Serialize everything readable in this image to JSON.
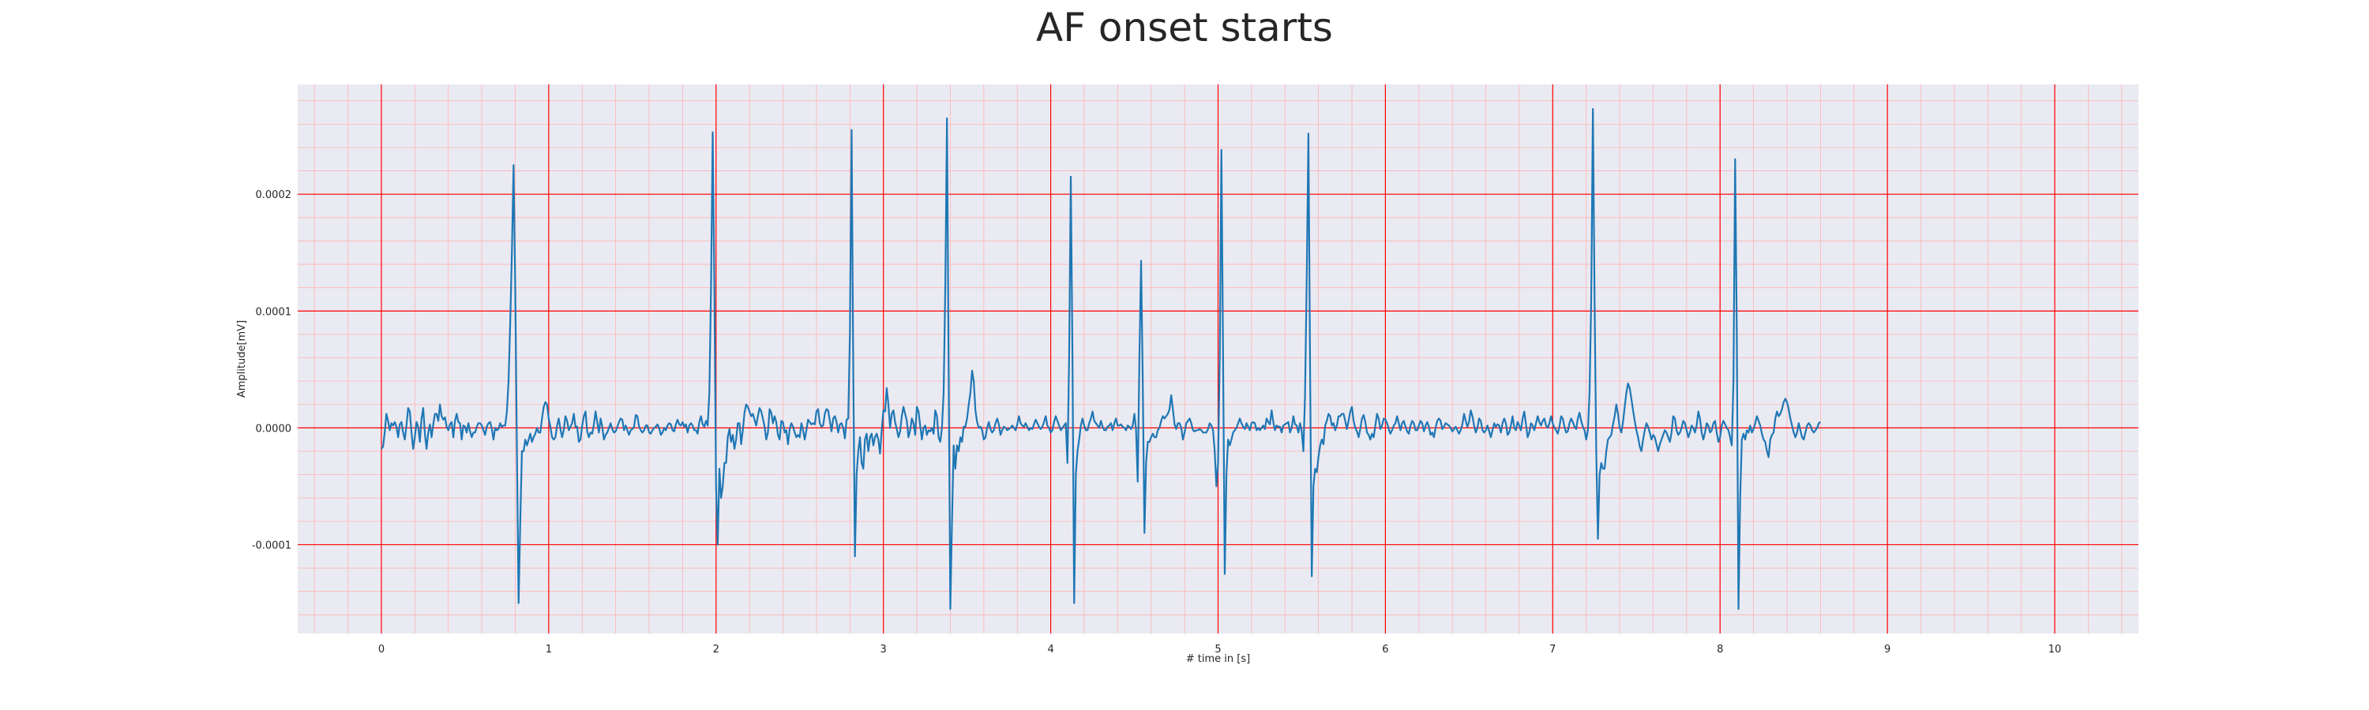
{
  "chart_data": {
    "type": "line",
    "title": "AF onset starts",
    "xlabel": "# time in [s]",
    "ylabel": "Amplitude[mV]",
    "xlim": [
      -0.5,
      10.5
    ],
    "ylim": [
      -0.000176,
      0.000294
    ],
    "xticks": [
      0,
      1,
      2,
      3,
      4,
      5,
      6,
      7,
      8,
      9,
      10
    ],
    "xtick_labels": [
      "0",
      "1",
      "2",
      "3",
      "4",
      "5",
      "6",
      "7",
      "8",
      "9",
      "10"
    ],
    "yticks": [
      -0.0001,
      0.0,
      0.0001,
      0.0002
    ],
    "ytick_labels": [
      "-0.0001",
      "0.0000",
      "0.0001",
      "0.0002"
    ],
    "grid": true,
    "grid_color": "#ff0000",
    "minor_grid_color": "#ffb3b3",
    "background_color": "#eaeaf2",
    "line_color": "#1f77b4",
    "series": [
      {
        "sampling_rate": 100,
        "start_time": 0.0,
        "values": [
          -1.8e-05,
          -1.6e-05,
          -4e-06,
          1.2e-05,
          6e-06,
          -2e-06,
          4e-06,
          2e-06,
          5e-06,
          1e-06,
          -8e-06,
          3e-06,
          5e-06,
          -4e-06,
          -1e-05,
          2e-06,
          1.7e-05,
          1.4e-05,
          -4e-06,
          -1.8e-05,
          -8e-06,
          5e-06,
          1e-06,
          -1.2e-05,
          8e-06,
          1.7e-05,
          -5e-06,
          -1.8e-05,
          -4e-06,
          3e-06,
          -8e-06,
          3e-06,
          1.2e-05,
          1.2e-05,
          6e-06,
          2e-05,
          1e-05,
          7e-06,
          9e-06,
          1e-06,
          -2e-06,
          3e-06,
          5e-06,
          -8e-06,
          6e-06,
          1.2e-05,
          5e-06,
          4e-06,
          -1e-05,
          2e-06,
          1e-06,
          -4e-06,
          4e-06,
          -3e-06,
          -8e-06,
          -4e-06,
          -4e-06,
          1e-06,
          4e-06,
          4e-06,
          2e-06,
          -2e-06,
          -6e-06,
          1e-06,
          4e-06,
          5e-06,
          -1e-06,
          -1e-05,
          0.0,
          -2e-06,
          -1e-06,
          4e-06,
          1e-06,
          2e-06,
          2e-06,
          1.4e-05,
          4e-05,
          9e-05,
          0.00015,
          0.000225,
          0.00012,
          -2e-05,
          -0.00015,
          -8e-05,
          -2e-05,
          -2e-05,
          -1e-05,
          -1.5e-05,
          -1e-05,
          -5e-06,
          -1.2e-05,
          -8e-06,
          -5e-06,
          0.0,
          -4e-06,
          -4e-06,
          8e-06,
          1.8e-05,
          2.2e-05,
          2e-05,
          8e-06,
          1e-06,
          -8e-06,
          -1e-05,
          -8e-06,
          2e-06,
          8e-06,
          -1e-06,
          -8e-06,
          -2e-06,
          1e-05,
          6e-06,
          -2e-06,
          1e-06,
          4e-06,
          1.2e-05,
          1e-06,
          1e-06,
          -1.2e-05,
          -1e-05,
          2e-06,
          1e-05,
          1.4e-05,
          -3e-06,
          -8e-06,
          -4e-06,
          -5e-06,
          3e-06,
          1.4e-05,
          5e-06,
          -4e-06,
          8e-06,
          1e-06,
          -1e-05,
          -6e-06,
          -4e-06,
          0.0,
          4e-06,
          -1e-06,
          -4e-06,
          -3e-06,
          1e-06,
          5e-06,
          8e-06,
          7e-06,
          -2e-06,
          2e-06,
          -2e-06,
          -6e-06,
          -2e-06,
          -1e-06,
          1e-06,
          1.1e-05,
          1e-05,
          1e-06,
          -2e-06,
          -4e-06,
          -2e-06,
          2e-06,
          2e-06,
          -4e-06,
          -5e-06,
          -2e-06,
          0.0,
          1e-06,
          3e-06,
          0.0,
          -6e-06,
          -4e-06,
          0.0,
          -2e-06,
          2e-06,
          4e-06,
          3e-06,
          -2e-06,
          -3e-06,
          3e-06,
          7e-06,
          3e-06,
          2e-06,
          5e-06,
          1e-06,
          3e-06,
          -4e-06,
          2e-06,
          4e-06,
          2e-06,
          -2e-06,
          -2e-06,
          -5e-06,
          5e-06,
          1e-05,
          3e-06,
          1e-06,
          6e-06,
          2e-06,
          3e-05,
          0.00012,
          0.000253,
          0.00012,
          -5e-05,
          -0.0001,
          -3.5e-05,
          -6e-05,
          -5e-05,
          -3e-05,
          -3e-05,
          -8e-06,
          -1e-06,
          -1.2e-05,
          -6e-06,
          -1.8e-05,
          -1e-05,
          4e-06,
          4e-06,
          -1.4e-05,
          -2e-06,
          1.3e-05,
          2e-05,
          1.8e-05,
          1.4e-05,
          1e-05,
          1.2e-05,
          7e-06,
          2e-06,
          1e-05,
          1.7e-05,
          1.4e-05,
          8e-06,
          1e-06,
          -1e-05,
          -4e-06,
          1.6e-05,
          1.3e-05,
          4e-06,
          1e-05,
          5e-06,
          -6e-06,
          -1e-05,
          6e-06,
          5e-06,
          -4e-06,
          -2e-06,
          -1.4e-05,
          -1e-06,
          4e-06,
          1e-06,
          -4e-06,
          -8e-06,
          -6e-06,
          -8e-06,
          4e-06,
          -2e-06,
          -1e-05,
          -2e-06,
          7e-06,
          5e-06,
          3e-06,
          4e-06,
          3e-06,
          1.4e-05,
          1.6e-05,
          4e-06,
          1e-06,
          2e-06,
          1.2e-05,
          1.6e-05,
          1.5e-05,
          6e-06,
          -3e-06,
          8e-06,
          1e-05,
          5e-06,
          -4e-06,
          3e-06,
          4e-06,
          0.0,
          -9e-06,
          7e-06,
          8e-06,
          8e-05,
          0.000255,
          5e-05,
          -0.00011,
          -4e-05,
          -2e-05,
          -8e-06,
          -3e-05,
          -3.5e-05,
          -1e-05,
          -5e-06,
          -2e-05,
          -8e-06,
          -5e-06,
          -1.5e-05,
          -8e-06,
          -5e-06,
          -1e-05,
          -2.2e-05,
          -2e-06,
          1.5e-05,
          1.4e-05,
          3.4e-05,
          2e-05,
          0.0,
          1.2e-05,
          1.5e-05,
          5e-06,
          -1e-06,
          -8e-06,
          -3e-06,
          1e-05,
          1.8e-05,
          1.2e-05,
          6e-06,
          -8e-06,
          -2e-06,
          8e-06,
          4e-06,
          -6e-06,
          1.8e-05,
          1.4e-05,
          2e-06,
          -1e-05,
          0.0,
          2e-06,
          -6e-06,
          -2e-06,
          -3e-06,
          0.0,
          -5e-06,
          1.5e-05,
          1e-05,
          -8e-06,
          -1.2e-05,
          0.0,
          3e-05,
          0.00012,
          0.000265,
          5e-05,
          -0.000155,
          -8e-05,
          -1.5e-05,
          -3.5e-05,
          -1.5e-05,
          -2e-05,
          -8e-06,
          -1.2e-05,
          1e-06,
          1e-06,
          8e-06,
          2e-05,
          3e-05,
          4.9e-05,
          4e-05,
          1.5e-05,
          5e-06,
          0.0,
          1e-06,
          -2e-06,
          -1e-05,
          -8e-06,
          0.0,
          5e-06,
          -1e-06,
          -4e-06,
          -2e-06,
          4e-06,
          8e-06,
          3e-06,
          -6e-06,
          -2e-06,
          1e-06,
          0.0,
          -2e-06,
          -1e-06,
          0.0,
          2e-06,
          0.0,
          -2e-06,
          3e-06,
          1e-05,
          4e-06,
          2e-06,
          1e-06,
          4e-06,
          1e-06,
          -2e-06,
          0.0,
          -1e-06,
          3e-06,
          7e-06,
          4e-06,
          1e-06,
          -1e-06,
          1e-06,
          5e-06,
          1e-05,
          2e-06,
          0.0,
          -4e-06,
          -2e-06,
          5e-06,
          1e-05,
          6e-06,
          2e-06,
          -2e-06,
          0.0,
          2e-06,
          4e-06,
          -3e-05,
          6e-05,
          0.000215,
          6e-05,
          -0.00015,
          -4e-05,
          -2e-05,
          -1e-05,
          2e-06,
          8e-06,
          2e-06,
          -2e-06,
          -2e-06,
          4e-06,
          8e-06,
          1.4e-05,
          6e-06,
          4e-06,
          2e-06,
          0.0,
          6e-06,
          1e-06,
          -2e-06,
          -2e-06,
          1e-06,
          2e-06,
          4e-06,
          -2e-06,
          4e-06,
          8e-06,
          2e-06,
          2e-06,
          3e-06,
          1e-06,
          0.0,
          -2e-06,
          2e-06,
          1e-06,
          -1e-06,
          2e-06,
          1.2e-05,
          -2e-06,
          -4.6e-05,
          6e-05,
          0.000143,
          4e-05,
          -9e-05,
          -3e-05,
          -1.2e-05,
          -1.2e-05,
          -8e-06,
          -5e-06,
          -8e-06,
          -8e-06,
          -2e-06,
          0.0,
          6e-06,
          1e-05,
          8e-06,
          1e-05,
          1.2e-05,
          1.6e-05,
          2.8e-05,
          1.6e-05,
          3e-06,
          -1e-06,
          4e-06,
          4e-06,
          0.0,
          -1e-05,
          -4e-06,
          4e-06,
          6e-06,
          8e-06,
          4e-06,
          -2e-06,
          -3e-06,
          -2e-06,
          -2e-06,
          -1e-06,
          -2e-06,
          -4e-06,
          -4e-06,
          -4e-06,
          -1e-06,
          4e-06,
          2e-06,
          -2e-06,
          -2e-05,
          -5e-05,
          -3e-05,
          6e-05,
          0.000238,
          6e-05,
          -0.000125,
          -4e-05,
          -1e-05,
          -1.5e-05,
          -1e-05,
          -4e-06,
          -2e-06,
          0.0,
          4e-06,
          8e-06,
          4e-06,
          1e-06,
          -1e-06,
          4e-06,
          1e-06,
          -2e-06,
          4e-06,
          5e-06,
          4e-06,
          -2e-06,
          0.0,
          -2e-06,
          0.0,
          2e-06,
          -1e-06,
          8e-06,
          5e-06,
          3e-06,
          1.5e-05,
          5e-06,
          -2e-06,
          2e-06,
          1e-06,
          1e-06,
          -4e-06,
          2e-06,
          3e-06,
          4e-06,
          5e-06,
          -4e-06,
          0.0,
          1e-05,
          3e-06,
          2e-06,
          -4e-06,
          4e-06,
          -3e-06,
          -2e-05,
          3e-05,
          0.00013,
          0.000252,
          5e-05,
          -0.000127,
          -5e-05,
          -3.5e-05,
          -3.8e-05,
          -2.5e-05,
          -1.5e-05,
          -1e-05,
          -1.4e-05,
          2e-06,
          6e-06,
          1.2e-05,
          1e-05,
          2e-06,
          4e-06,
          -2e-06,
          2e-06,
          1e-05,
          1e-05,
          1.2e-05,
          1.2e-05,
          6e-06,
          -1e-06,
          6e-06,
          1.4e-05,
          1.8e-05,
          6e-06,
          0.0,
          -3e-06,
          -8e-06,
          -1e-06,
          8e-06,
          1.1e-05,
          5e-06,
          -4e-06,
          -6e-06,
          -1e-05,
          -5e-06,
          -8e-06,
          2e-06,
          1.2e-05,
          8e-06,
          -1e-06,
          2e-06,
          8e-06,
          7e-06,
          4e-06,
          -1e-06,
          -5e-06,
          -2e-06,
          2e-06,
          4e-06,
          1e-05,
          4e-06,
          -2e-06,
          4e-06,
          6e-06,
          1e-06,
          -3e-06,
          -5e-06,
          2e-06,
          6e-06,
          4e-06,
          -2e-06,
          -2e-06,
          2e-06,
          6e-06,
          4e-06,
          -3e-06,
          2e-06,
          5e-06,
          1e-06,
          -6e-06,
          -4e-06,
          -8e-06,
          0.0,
          6e-06,
          8e-06,
          6e-06,
          -1e-06,
          1e-06,
          4e-06,
          3e-06,
          2e-06,
          0.0,
          -3e-06,
          -1e-06,
          1e-06,
          -2e-06,
          -5e-06,
          -2e-06,
          3e-06,
          1.2e-05,
          6e-06,
          1e-06,
          5e-06,
          1.5e-05,
          1e-05,
          2e-06,
          -4e-06,
          0.0,
          8e-06,
          6e-06,
          -2e-06,
          -4e-06,
          -2e-06,
          2e-06,
          -3e-06,
          -8e-06,
          -2e-06,
          4e-06,
          1e-06,
          3e-06,
          2e-06,
          -4e-06,
          4e-06,
          8e-06,
          4e-06,
          -6e-06,
          -4e-06,
          2e-06,
          1e-05,
          0.0,
          -2e-06,
          5e-06,
          2e-06,
          -2e-06,
          8e-06,
          1.4e-05,
          3e-06,
          -8e-06,
          -4e-06,
          4e-06,
          2e-06,
          -2e-06,
          4e-06,
          1e-05,
          5e-06,
          2e-06,
          6e-06,
          8e-06,
          2e-06,
          0.0,
          4e-06,
          1e-05,
          4e-06,
          0.0,
          -2e-06,
          -5e-06,
          1e-06,
          1e-05,
          8e-06,
          1e-06,
          -4e-06,
          -3e-06,
          4e-06,
          8e-06,
          5e-06,
          1e-06,
          -1e-06,
          8e-06,
          1.3e-05,
          6e-06,
          1e-06,
          -2e-06,
          -1e-05,
          -2e-06,
          3e-05,
          0.00011,
          0.000273,
          0.00011,
          -2e-05,
          -9.5e-05,
          -4e-05,
          -3e-05,
          -3.5e-05,
          -3.5e-05,
          -2e-05,
          -1e-05,
          -8e-06,
          -6e-06,
          3e-06,
          1e-05,
          2e-05,
          1.2e-05,
          0.0,
          -4e-06,
          5e-06,
          1.8e-05,
          3e-05,
          3.8e-05,
          3.4e-05,
          2.5e-05,
          1.5e-05,
          6e-06,
          -2e-06,
          -8e-06,
          -1.6e-05,
          -2e-05,
          -1e-05,
          -2e-06,
          4e-06,
          1e-06,
          -4e-06,
          -1e-05,
          -6e-06,
          -8e-06,
          -1.4e-05,
          -2e-05,
          -1.4e-05,
          -1e-05,
          -6e-06,
          -2e-06,
          -4e-06,
          -8e-06,
          -1.2e-05,
          -4e-06,
          1e-05,
          8e-06,
          -2e-06,
          -6e-06,
          -4e-06,
          0.0,
          6e-06,
          4e-06,
          -2e-06,
          -8e-06,
          -4e-06,
          2e-06,
          0.0,
          -4e-06,
          2e-06,
          1.4e-05,
          8e-06,
          -4e-06,
          -1e-05,
          -4e-06,
          4e-06,
          2e-06,
          -4e-06,
          -2e-06,
          4e-06,
          6e-06,
          -4e-06,
          -1.2e-05,
          -8e-06,
          2e-06,
          6e-06,
          3e-06,
          0.0,
          -2e-06,
          -8e-06,
          -1.5e-05,
          4e-05,
          0.00023,
          8e-05,
          -0.000155,
          -6e-05,
          -1e-05,
          -5e-06,
          -1e-05,
          -2e-06,
          -4e-06,
          2e-06,
          -4e-06,
          -1e-06,
          4e-06,
          1e-05,
          6e-06,
          2e-06,
          -5e-06,
          -1e-05,
          -1.2e-05,
          -2e-05,
          -2.5e-05,
          -1e-05,
          -6e-06,
          -4e-06,
          8e-06,
          1.4e-05,
          1e-05,
          1.2e-05,
          1.6e-05,
          2.2e-05,
          2.5e-05,
          2.2e-05,
          1.6e-05,
          8e-06,
          2e-06,
          -4e-06,
          -8e-06,
          -4e-06,
          4e-06,
          -2e-06,
          -8e-06,
          -1e-05,
          -4e-06,
          2e-06,
          4e-06,
          2e-06,
          -2e-06,
          -4e-06,
          -2e-06,
          0.0,
          4e-06,
          5e-06
        ]
      }
    ]
  }
}
